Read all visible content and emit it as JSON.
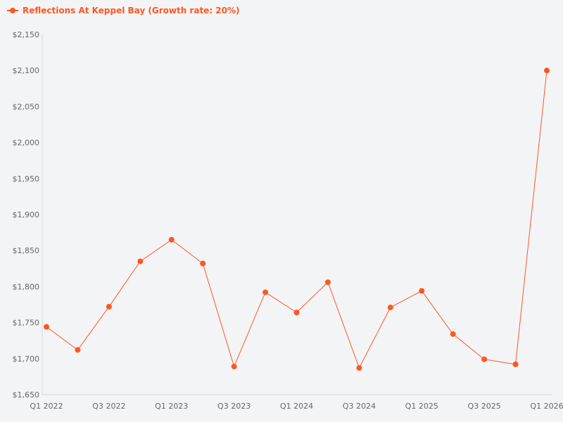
{
  "chart_data": {
    "type": "line",
    "title": "",
    "xlabel": "",
    "ylabel": "",
    "categories": [
      "Q1 2022",
      "Q2 2022",
      "Q3 2022",
      "Q4 2022",
      "Q1 2023",
      "Q2 2023",
      "Q3 2023",
      "Q4 2023",
      "Q1 2024",
      "Q2 2024",
      "Q3 2024",
      "Q4 2024",
      "Q1 2025",
      "Q2 2025",
      "Q3 2025",
      "Q4 2025",
      "Q1 2026"
    ],
    "x_tick_labels": [
      "Q1 2022",
      "Q3 2022",
      "Q1 2023",
      "Q3 2023",
      "Q1 2024",
      "Q3 2024",
      "Q1 2025",
      "Q3 2025",
      "Q1 2026"
    ],
    "y_tick_labels": [
      "$1,650",
      "$1,700",
      "$1,750",
      "$1,800",
      "$1,850",
      "$1,900",
      "$1,950",
      "$2,000",
      "$2,050",
      "$2,100",
      "$2,150"
    ],
    "ylim": [
      1650,
      2150
    ],
    "grid": false,
    "legend_position": "top-left",
    "series": [
      {
        "name": "Reflections At Keppel Bay (Growth rate: 20%)",
        "color": "#ff5722",
        "values": [
          1744,
          1712,
          1772,
          1835,
          1865,
          1832,
          1689,
          1792,
          1764,
          1806,
          1687,
          1771,
          1794,
          1734,
          1699,
          1692,
          2100
        ]
      }
    ]
  }
}
